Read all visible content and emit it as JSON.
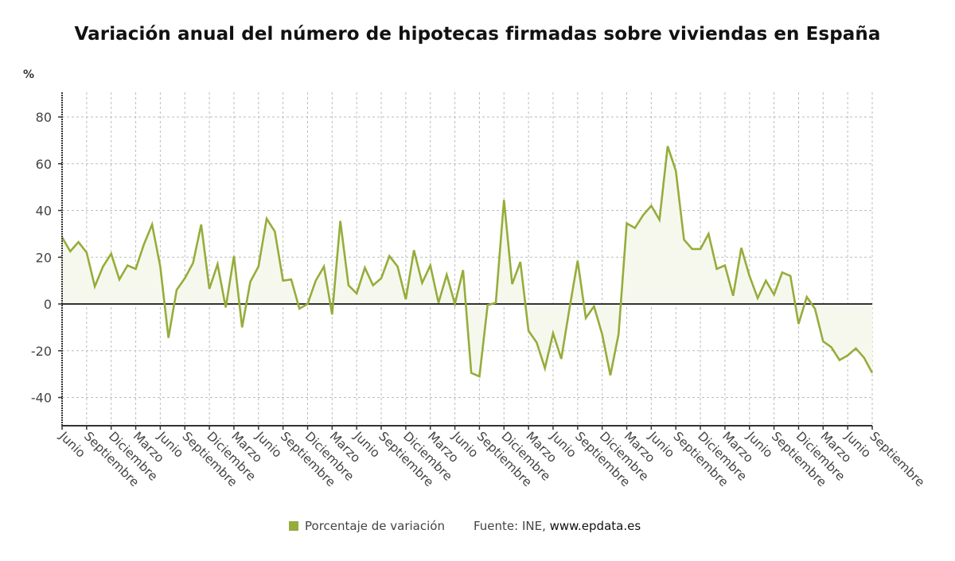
{
  "chart_data": {
    "type": "area",
    "title": "Variación anual del número de hipotecas firmadas sobre viviendas en España",
    "ylabel": "%",
    "xlabel": "",
    "ylim": [
      -52,
      90
    ],
    "yticks": [
      80,
      60,
      40,
      20,
      0,
      -20,
      -40
    ],
    "grid": true,
    "legend_position": "bottom-center",
    "xtick_labels": [
      "Junio",
      "Septiembre",
      "Diciembre",
      "Marzo",
      "Junio",
      "Septiembre",
      "Diciembre",
      "Marzo",
      "Junio",
      "Septiembre",
      "Diciembre",
      "Marzo",
      "Junio",
      "Septiembre",
      "Diciembre",
      "Marzo",
      "Junio",
      "Septiembre",
      "Diciembre",
      "Marzo",
      "Junio",
      "Septiembre",
      "Diciembre",
      "Marzo",
      "Junio",
      "Septiembre",
      "Diciembre",
      "Marzo",
      "Junio",
      "Septiembre",
      "Diciembre",
      "Marzo",
      "Junio",
      "Septiembre"
    ],
    "xtick_every_n_points": 3,
    "series": [
      {
        "name": "Porcentaje de variación",
        "color": "#95ad3b",
        "fill": "#f6f8ee",
        "values": [
          28.5,
          22.5,
          26.5,
          22,
          7.5,
          16,
          21.5,
          10.5,
          16.5,
          15,
          25.5,
          34,
          16,
          -14.5,
          6,
          11,
          17.5,
          34,
          6.5,
          17,
          -1.5,
          20.5,
          -10,
          9.5,
          16,
          36.5,
          31,
          10,
          10.5,
          -2,
          0,
          10,
          16,
          -4.5,
          35.5,
          8,
          4.5,
          15.5,
          8,
          11,
          20.5,
          16,
          2,
          23,
          9,
          16.5,
          0.5,
          12.5,
          0,
          14.5,
          -29.5,
          -31,
          -0.5,
          0.5,
          44.5,
          8.5,
          18,
          -11.5,
          -16.5,
          -27.5,
          -12.5,
          -23.5,
          -2,
          18.5,
          -6,
          -1,
          -13,
          -30.5,
          -13,
          34.5,
          32.5,
          38,
          42,
          36,
          67.5,
          57,
          27.5,
          23.5,
          23.5,
          30,
          15,
          16.5,
          3.5,
          24,
          12,
          2.5,
          10,
          4,
          13.5,
          12,
          -8.5,
          3,
          -2,
          -16,
          -18.5,
          -24,
          -22,
          -19,
          -23,
          -29.5
        ]
      }
    ]
  },
  "legend": {
    "label": "Porcentaje de variación",
    "color": "#95ad3b"
  },
  "source": {
    "prefix": "Fuente: INE, ",
    "site": "www.epdata.es"
  },
  "colors": {
    "zero_line": "#333333",
    "grid": "#bdbdbd",
    "axis": "#333333"
  }
}
